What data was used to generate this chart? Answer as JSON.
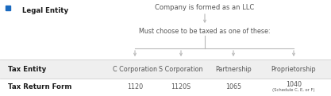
{
  "bg_color": "#ffffff",
  "header_row_color": "#efefef",
  "row2_color": "#ffffff",
  "label_legal_entity": "Legal Entity",
  "label_top_node": "Company is formed as an LLC",
  "label_middle_node": "Must choose to be taxed as one of these:",
  "tax_entity_label": "Tax Entity",
  "tax_return_label": "Tax Return Form",
  "entities": [
    "C Corporation",
    "S Corporation",
    "Partnership",
    "Proprietorship"
  ],
  "forms": [
    "1120",
    "1120S",
    "1065",
    "1040"
  ],
  "forms_sub": [
    "",
    "",
    "",
    "(Schedule C, E, or F)"
  ],
  "arrow_color": "#b8b8b8",
  "text_color": "#555555",
  "bold_color": "#1a1a1a",
  "line_color": "#d0d0d0",
  "toptal_icon_color": "#1a6abf",
  "fig_w": 4.17,
  "fig_h": 1.21,
  "dpi": 100
}
